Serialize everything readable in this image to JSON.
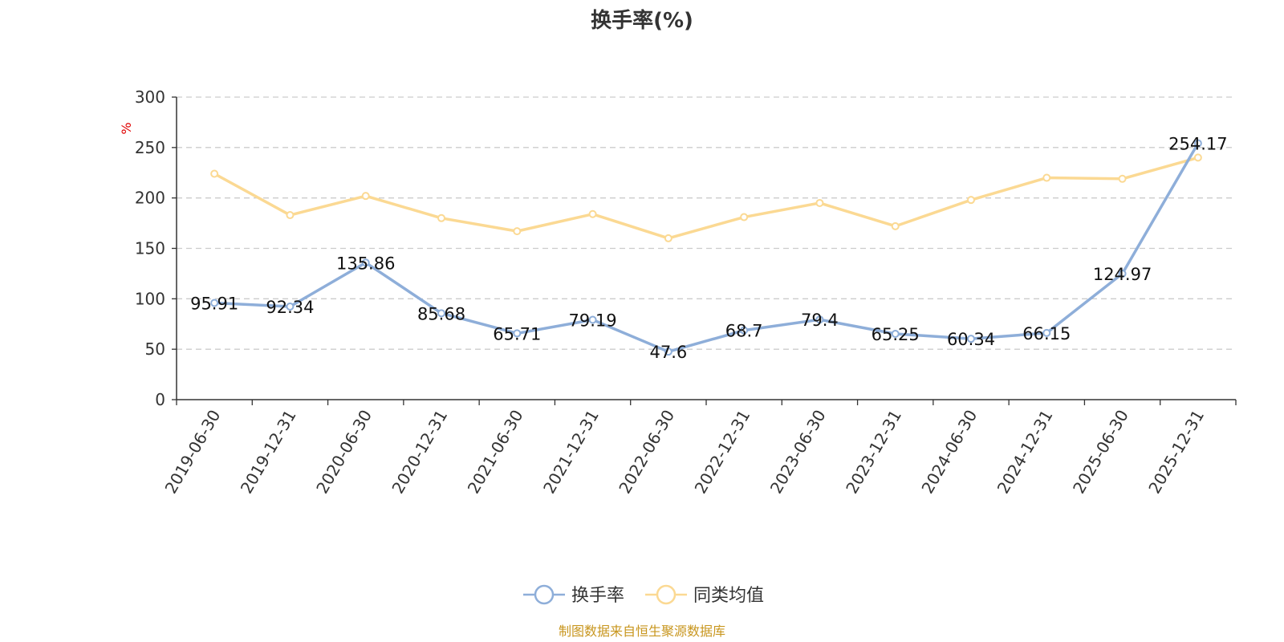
{
  "chart_data": {
    "type": "line",
    "title": "换手率(%)",
    "ylabel": "%",
    "xlabel": "",
    "ylim": [
      0,
      300
    ],
    "yticks": [
      0,
      50,
      100,
      150,
      200,
      250,
      300
    ],
    "grid": true,
    "legend_position": "bottom-center",
    "categories": [
      "2019-06-30",
      "2019-12-31",
      "2020-06-30",
      "2020-12-31",
      "2021-06-30",
      "2021-12-31",
      "2022-06-30",
      "2022-12-31",
      "2023-06-30",
      "2023-12-31",
      "2024-06-30",
      "2024-12-31",
      "2025-06-30",
      "2025-12-31"
    ],
    "series": [
      {
        "name": "换手率",
        "color": "#8eaed9",
        "values": [
          95.91,
          92.34,
          135.86,
          85.68,
          65.71,
          79.19,
          47.6,
          68.7,
          79.4,
          65.25,
          60.34,
          66.15,
          124.97,
          254.17
        ],
        "labels": [
          "95.91",
          "92.34",
          "135.86",
          "85.68",
          "65.71",
          "79.19",
          "47.6",
          "68.7",
          "79.4",
          "65.25",
          "60.34",
          "66.15",
          "124.97",
          "254.17"
        ]
      },
      {
        "name": "同类均值",
        "color": "#fbd993",
        "values": [
          224,
          183,
          202,
          180,
          167,
          184,
          160,
          181,
          195,
          172,
          198,
          220,
          219,
          240
        ]
      }
    ]
  },
  "source_text": "制图数据来自恒生聚源数据库",
  "colors": {
    "axis": "#333333",
    "grid": "#cccccc",
    "unit": "#e00000",
    "source": "#c8961e"
  }
}
